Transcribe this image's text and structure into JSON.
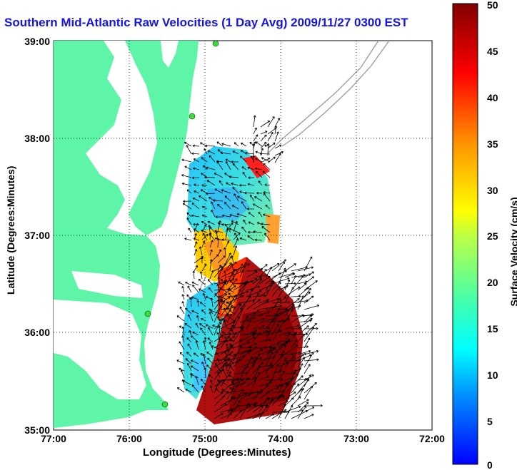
{
  "title": "Southern Mid-Atlantic Raw Velocities (1 Day Avg) 2009/11/27 0300 EST",
  "xlabel": "Longitude (Degrees:Minutes)",
  "ylabel": "Latitude (Degrees:Minutes)",
  "colorbar": {
    "label": "Surface Velocity (cm/s)",
    "ticks": [
      "0",
      "5",
      "10",
      "15",
      "20",
      "25",
      "30",
      "35",
      "40",
      "45",
      "50"
    ],
    "min": 0,
    "max": 50,
    "colors": [
      "#0000ff",
      "#00a0ff",
      "#00ffff",
      "#60ffa0",
      "#ffff00",
      "#ff8000",
      "#ff0000",
      "#800000"
    ]
  },
  "axes": {
    "x_ticks": [
      "77:00",
      "76:00",
      "75:00",
      "74:00",
      "73:00",
      "72:00"
    ],
    "y_ticks": [
      "39:00",
      "38:00",
      "37:00",
      "36:00",
      "35:00"
    ]
  },
  "colors": {
    "land": "#5ef5a8",
    "water": "#ffffff",
    "station": "#36e036",
    "arrows": "#000000",
    "bathymetry": "#999999",
    "title": "#1414e6"
  }
}
